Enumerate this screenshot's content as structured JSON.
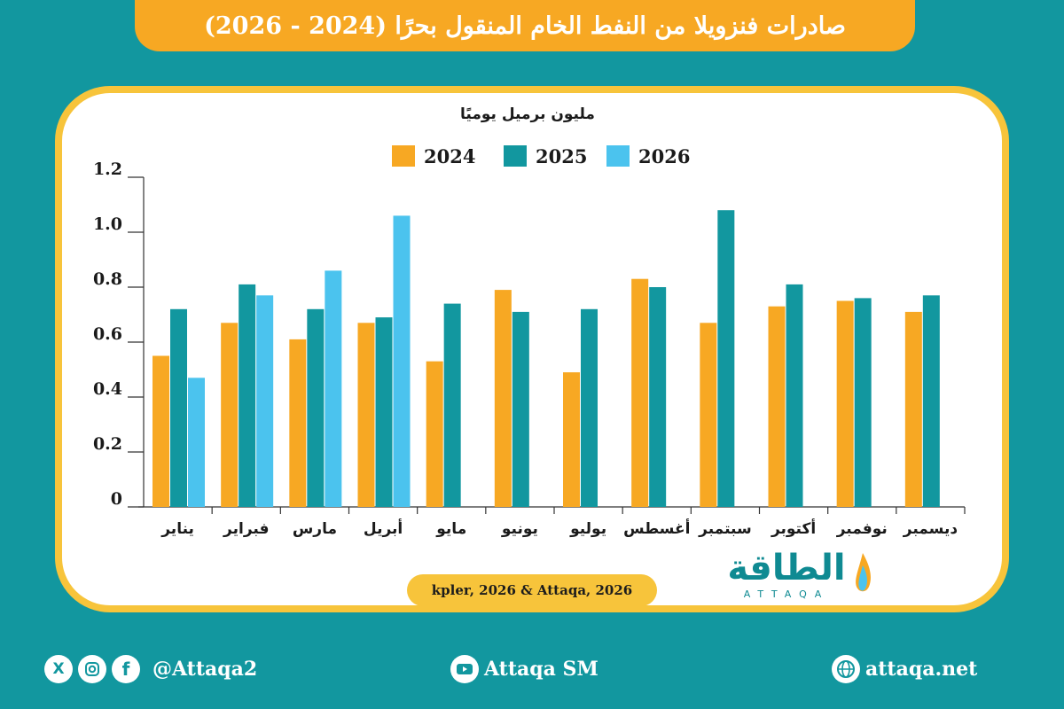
{
  "header": {
    "title": "صادرات فنزويلا من النفط الخام المنقول بحرًا (2024 - 2026)"
  },
  "source": "kpler, 2026 & Attaqa, 2026",
  "logo": {
    "word": "الطاقة",
    "latin": "ATTAQA"
  },
  "footer": {
    "social_handle": "@Attaqa2",
    "youtube": "Attaqa SM",
    "website": "attaqa.net",
    "icons": [
      "x-icon",
      "instagram-icon",
      "facebook-icon",
      "youtube-icon",
      "globe-icon"
    ]
  },
  "colors": {
    "y2024": "#f7a823",
    "y2025": "#12979f",
    "y2026": "#4bc3ee",
    "accent": "#f7c43b",
    "background": "#12979f"
  },
  "chart_data": {
    "type": "bar",
    "title": "",
    "ylabel": "مليون برميل يوميًا",
    "xlabel": "",
    "ylim": [
      0,
      1.2
    ],
    "yticks": [
      "0",
      "0.2",
      "0.4",
      "0.6",
      "0.8",
      "1.0",
      "1.2"
    ],
    "legend_position": "top",
    "categories": [
      "يناير",
      "فبراير",
      "مارس",
      "أبريل",
      "مايو",
      "يونيو",
      "يوليو",
      "أغسطس",
      "سبتمبر",
      "أكتوبر",
      "نوفمبر",
      "ديسمبر"
    ],
    "series": [
      {
        "name": "2024",
        "values": [
          0.55,
          0.67,
          0.61,
          0.67,
          0.53,
          0.79,
          0.49,
          0.83,
          0.67,
          0.73,
          0.75,
          0.71
        ]
      },
      {
        "name": "2025",
        "values": [
          0.72,
          0.81,
          0.72,
          0.69,
          0.74,
          0.71,
          0.72,
          0.8,
          1.08,
          0.81,
          0.76,
          0.77
        ]
      },
      {
        "name": "2026",
        "values": [
          0.47,
          0.77,
          0.86,
          1.06,
          null,
          null,
          null,
          null,
          null,
          null,
          null,
          null
        ]
      }
    ]
  }
}
